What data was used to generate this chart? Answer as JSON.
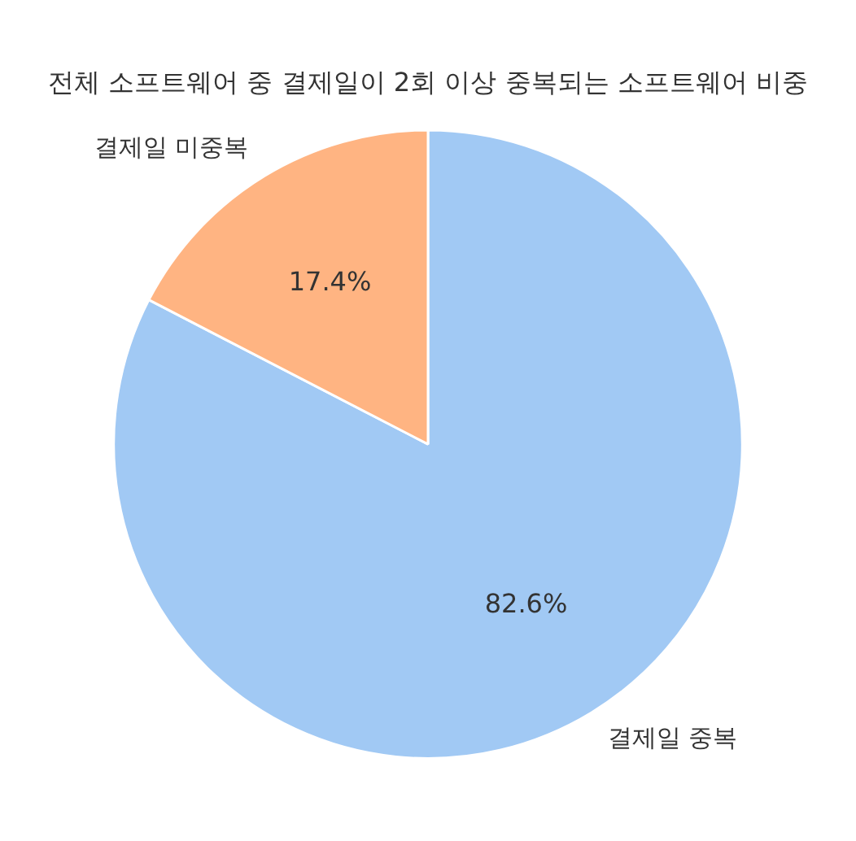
{
  "chart_data": {
    "type": "pie",
    "title": "전체 소프트웨어 중 결제일이 2회 이상 중복되는 소프트웨어 비중",
    "categories": [
      "결제일 중복",
      "결제일 미중복"
    ],
    "values": [
      82.6,
      17.4
    ],
    "colors": [
      "#a1c9f4",
      "#ffb482"
    ],
    "value_labels": [
      "82.6%",
      "17.4%"
    ],
    "legend": false
  }
}
